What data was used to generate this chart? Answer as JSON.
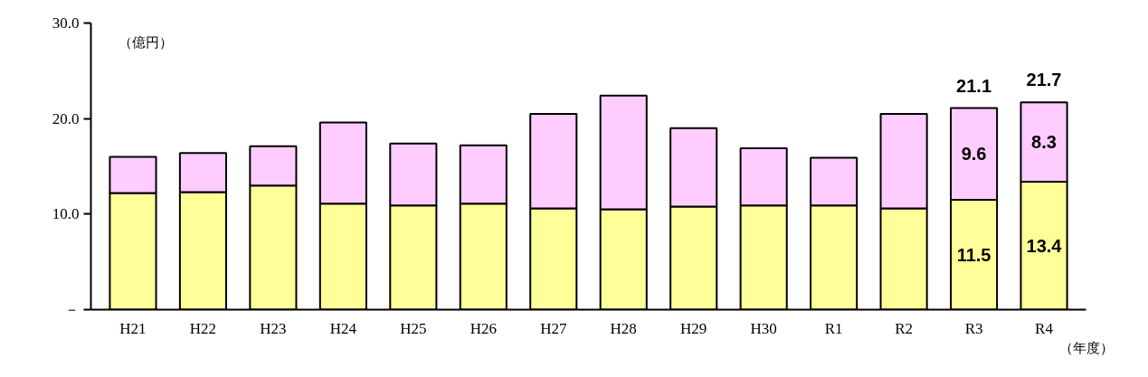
{
  "chart_data": {
    "type": "bar",
    "stacked": true,
    "ylabel": "（億円）",
    "xlabel": "（年度）",
    "categories": [
      "H21",
      "H22",
      "H23",
      "H24",
      "H25",
      "H26",
      "H27",
      "H28",
      "H29",
      "H30",
      "R1",
      "R2",
      "R3",
      "R4"
    ],
    "series": [
      {
        "color": "#ffff99",
        "values": [
          12.2,
          12.3,
          13.0,
          11.1,
          10.9,
          11.1,
          10.6,
          10.5,
          10.8,
          10.9,
          10.9,
          10.6,
          11.5,
          13.4
        ],
        "value_labels": [
          null,
          null,
          null,
          null,
          null,
          null,
          null,
          null,
          null,
          null,
          null,
          null,
          "11.5",
          "13.4"
        ]
      },
      {
        "color": "#ffccff",
        "values": [
          3.8,
          4.1,
          4.1,
          8.5,
          6.5,
          6.1,
          9.9,
          11.9,
          8.2,
          6.0,
          5.0,
          9.9,
          9.6,
          8.3
        ],
        "value_labels": [
          null,
          null,
          null,
          null,
          null,
          null,
          null,
          null,
          null,
          null,
          null,
          null,
          "9.6",
          "8.3"
        ]
      }
    ],
    "totals": [
      null,
      null,
      null,
      null,
      null,
      null,
      null,
      null,
      null,
      null,
      null,
      null,
      "21.1",
      "21.7"
    ],
    "ylim": [
      0,
      30
    ],
    "yticks": [
      {
        "value": 0,
        "label": "－"
      },
      {
        "value": 10,
        "label": "10.0"
      },
      {
        "value": 20,
        "label": "20.0"
      },
      {
        "value": 30,
        "label": "30.0"
      }
    ],
    "grid": false
  }
}
